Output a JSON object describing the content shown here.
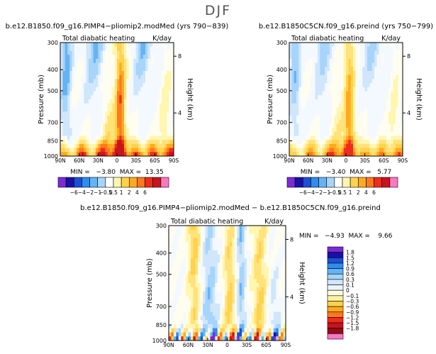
{
  "figure": {
    "title": "DJF"
  },
  "chart_data": [
    {
      "type": "heatmap",
      "title": "b.e12.B1850.f09_g16.PIMP4−pliomip2.modMed (yrs 790−839)",
      "subtitle": "Total diabatic heating",
      "units": "K/day",
      "xlabel": "",
      "ylabel": "Pressure (mb)",
      "y2label": "Height (km)",
      "x_ticks": [
        "90N",
        "60N",
        "30N",
        "0",
        "30S",
        "60S",
        "90S"
      ],
      "y_ticks": [
        "300",
        "400",
        "500",
        "700",
        "850",
        "1000"
      ],
      "y2_ticks": [
        "8",
        "4"
      ],
      "stats": "MIN =   −3.80  MAX =  13.35",
      "levels": [
        "−6",
        "−4",
        "−2",
        "−1",
        "−0.5",
        "0.5",
        "1",
        "2",
        "4",
        "6"
      ]
    },
    {
      "type": "heatmap",
      "title": "b.e12.B1850C5CN.f09_g16.preind (yrs 750−799)",
      "subtitle": "Total diabatic heating",
      "units": "K/day",
      "xlabel": "",
      "ylabel": "Pressure (mb)",
      "y2label": "Height (km)",
      "x_ticks": [
        "90N",
        "60N",
        "30N",
        "0",
        "30S",
        "60S",
        "90S"
      ],
      "y_ticks": [
        "300",
        "400",
        "500",
        "700",
        "850",
        "1000"
      ],
      "y2_ticks": [
        "8",
        "4"
      ],
      "stats": "MIN =   −3.40  MAX =   5.77",
      "levels": [
        "−6",
        "−4",
        "−2",
        "−1",
        "−0.5",
        "0.5",
        "1",
        "2",
        "4",
        "6"
      ]
    },
    {
      "type": "heatmap",
      "title": "b.e12.B1850.f09_g16.PIMP4−pliomip2.modMed − b.e12.B1850C5CN.f09_g16.preind",
      "subtitle": "Total diabatic heating",
      "units": "K/day",
      "xlabel": "",
      "ylabel": "Pressure (mb)",
      "y2label": "Height (km)",
      "x_ticks": [
        "90N",
        "60N",
        "30N",
        "0",
        "30S",
        "60S",
        "90S"
      ],
      "y_ticks": [
        "300",
        "400",
        "500",
        "700",
        "850",
        "1000"
      ],
      "y2_ticks": [
        "8",
        "4"
      ],
      "stats": "MIN =   −4.93  MAX =    9.66",
      "levels": [
        "−1.8",
        "−1.5",
        "−1.2",
        "−0.9",
        "−0.6",
        "−0.3",
        "−0.1",
        "0",
        "0.1",
        "0.3",
        "0.6",
        "0.9",
        "1.2",
        "1.5",
        "1.8"
      ]
    }
  ],
  "colors": {
    "horizontal_bar": [
      "#7b2bd6",
      "#1a0fa8",
      "#1d4fd6",
      "#2f8cf0",
      "#64b4f5",
      "#a6d4fa",
      "#ffffff",
      "#fff6b0",
      "#ffd24d",
      "#ffaa1e",
      "#ff781e",
      "#ef2c1c",
      "#c8141e",
      "#ff77c0"
    ],
    "vertical_bar": [
      "#7b2bd6",
      "#1a0fa8",
      "#1d4fd6",
      "#2f8cf0",
      "#64b4f5",
      "#a6d4fa",
      "#cfe6fb",
      "#eaf4fd",
      "#fffbe0",
      "#fff1a0",
      "#ffd24d",
      "#ffaa1e",
      "#ff781e",
      "#ef2c1c",
      "#c8141e",
      "#8e0f1a",
      "#ff77c0"
    ]
  }
}
